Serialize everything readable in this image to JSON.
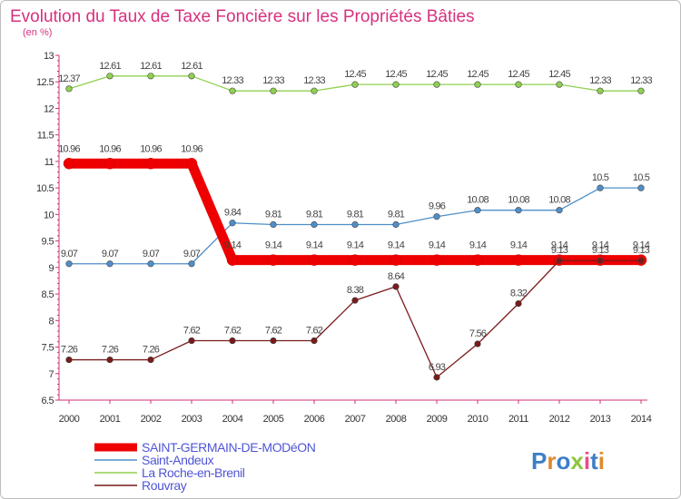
{
  "chart_data": {
    "type": "line",
    "title": "Evolution du Taux de Taxe Foncière sur les Propriétés Bâties",
    "subtitle": "(en %)",
    "xlabel": "",
    "ylabel": "",
    "ylim": [
      6.5,
      13
    ],
    "yticks": [
      6.5,
      7,
      7.5,
      8,
      8.5,
      9,
      9.5,
      10,
      10.5,
      11,
      11.5,
      12,
      12.5,
      13
    ],
    "ytick_labels": [
      "6.5",
      "7",
      "7.5",
      "8",
      "8.5",
      "9",
      "9.5",
      "10",
      "10.5",
      "11",
      "11.5",
      "12",
      "12.5",
      "13"
    ],
    "categories": [
      "2000",
      "2001",
      "2002",
      "2003",
      "2004",
      "2005",
      "2006",
      "2007",
      "2008",
      "2009",
      "2010",
      "2011",
      "2012",
      "2013",
      "2014"
    ],
    "grid": false,
    "legend_position": "bottom-left",
    "series": [
      {
        "name": "La Roche-en-Brenil",
        "color": "#8fd14f",
        "thickness": "thin",
        "values": [
          12.37,
          12.61,
          12.61,
          12.61,
          12.33,
          12.33,
          12.33,
          12.45,
          12.45,
          12.45,
          12.45,
          12.45,
          12.45,
          12.33,
          12.33
        ],
        "labels": [
          "12.37",
          "12.61",
          "12.61",
          "12.61",
          "12.33",
          "12.33",
          "12.33",
          "12.45",
          "12.45",
          "12.45",
          "12.45",
          "12.45",
          "12.45",
          "12.33",
          "12.33"
        ]
      },
      {
        "name": "Saint-Andeux",
        "color": "#4f8fc9",
        "thickness": "thin",
        "values": [
          9.07,
          9.07,
          9.07,
          9.07,
          9.84,
          9.81,
          9.81,
          9.81,
          9.81,
          9.96,
          10.08,
          10.08,
          10.08,
          10.5,
          10.5
        ],
        "labels": [
          "9.07",
          "9.07",
          "9.07",
          "9.07",
          "9.84",
          "9.81",
          "9.81",
          "9.81",
          "9.81",
          "9.96",
          "10.08",
          "10.08",
          "10.08",
          "10.5",
          "10.5"
        ]
      },
      {
        "name": "SAINT-GERMAIN-DE-MODéON",
        "color": "#ee0000",
        "thickness": "thick",
        "values": [
          10.96,
          10.96,
          10.96,
          10.96,
          9.14,
          9.14,
          9.14,
          9.14,
          9.14,
          9.14,
          9.14,
          9.14,
          9.14,
          9.14,
          9.14
        ],
        "labels": [
          "10.96",
          "10.96",
          "10.96",
          "10.96",
          "9.14",
          "9.14",
          "9.14",
          "9.14",
          "9.14",
          "9.14",
          "9.14",
          "9.14",
          "9.14",
          "9.14",
          "9.14"
        ]
      },
      {
        "name": "Rouvray",
        "color": "#7a1a1a",
        "thickness": "thin",
        "values": [
          7.26,
          7.26,
          7.26,
          7.62,
          7.62,
          7.62,
          7.62,
          8.38,
          8.64,
          6.93,
          7.56,
          8.32,
          9.13,
          9.13,
          9.13
        ],
        "labels": [
          "7.26",
          "7.26",
          "7.26",
          "7.62",
          "7.62",
          "7.62",
          "7.62",
          "8.38",
          "8.64",
          "6.93",
          "7.56",
          "8.32",
          "9.13",
          "9.13",
          "9.13"
        ]
      }
    ],
    "legend": [
      "SAINT-GERMAIN-DE-MODéON",
      "Saint-Andeux",
      "La Roche-en-Brenil",
      "Rouvray"
    ]
  },
  "brand": {
    "letters": [
      "P",
      "r",
      "o",
      "x",
      "i",
      "t",
      "i"
    ]
  }
}
